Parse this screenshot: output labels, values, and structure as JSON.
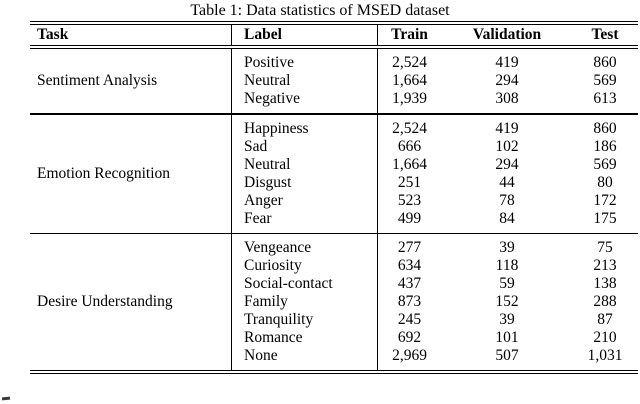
{
  "caption": "Table 1: Data statistics of MSED dataset",
  "columns": [
    "Task",
    "Label",
    "Train",
    "Validation",
    "Test"
  ],
  "colors": {
    "text": "#000000",
    "background": "#ffffff",
    "rule": "#000000"
  },
  "sections": [
    {
      "task": "Sentiment Analysis",
      "rows": [
        {
          "label": "Positive",
          "train": "2,524",
          "validation": "419",
          "test": "860"
        },
        {
          "label": "Neutral",
          "train": "1,664",
          "validation": "294",
          "test": "569"
        },
        {
          "label": "Negative",
          "train": "1,939",
          "validation": "308",
          "test": "613"
        }
      ]
    },
    {
      "task": "Emotion Recognition",
      "rows": [
        {
          "label": "Happiness",
          "train": "2,524",
          "validation": "419",
          "test": "860"
        },
        {
          "label": "Sad",
          "train": "666",
          "validation": "102",
          "test": "186"
        },
        {
          "label": "Neutral",
          "train": "1,664",
          "validation": "294",
          "test": "569"
        },
        {
          "label": "Disgust",
          "train": "251",
          "validation": "44",
          "test": "80"
        },
        {
          "label": "Anger",
          "train": "523",
          "validation": "78",
          "test": "172"
        },
        {
          "label": "Fear",
          "train": "499",
          "validation": "84",
          "test": "175"
        }
      ]
    },
    {
      "task": "Desire Understanding",
      "rows": [
        {
          "label": "Vengeance",
          "train": "277",
          "validation": "39",
          "test": "75"
        },
        {
          "label": "Curiosity",
          "train": "634",
          "validation": "118",
          "test": "213"
        },
        {
          "label": "Social-contact",
          "train": "437",
          "validation": "59",
          "test": "138"
        },
        {
          "label": "Family",
          "train": "873",
          "validation": "152",
          "test": "288"
        },
        {
          "label": "Tranquility",
          "train": "245",
          "validation": "39",
          "test": "87"
        },
        {
          "label": "Romance",
          "train": "692",
          "validation": "101",
          "test": "210"
        },
        {
          "label": "None",
          "train": "2,969",
          "validation": "507",
          "test": "1,031"
        }
      ]
    }
  ]
}
